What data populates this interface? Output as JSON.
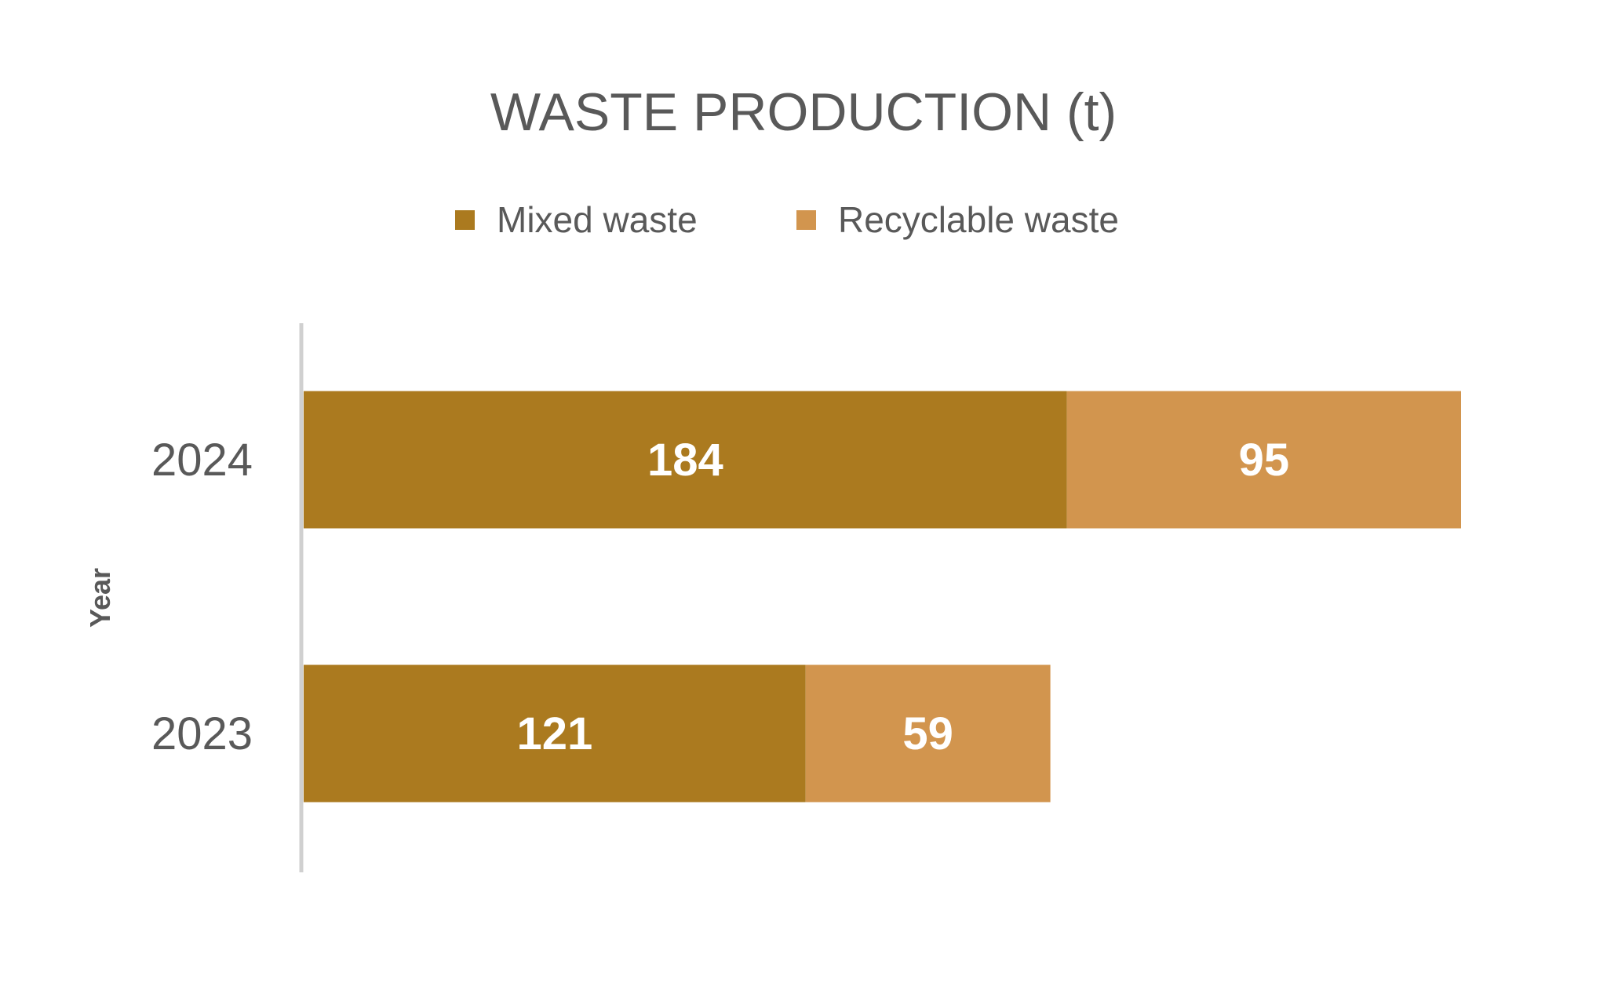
{
  "chart_data": {
    "type": "bar",
    "orientation": "horizontal",
    "stacked": true,
    "title": "WASTE PRODUCTION (t)",
    "ylabel": "Year",
    "xlabel": "",
    "categories": [
      "2024",
      "2023"
    ],
    "series": [
      {
        "name": "Mixed waste",
        "values": [
          184,
          121
        ],
        "color": "#AB7A1F"
      },
      {
        "name": "Recyclable waste",
        "values": [
          95,
          59
        ],
        "color": "#D2954E"
      }
    ],
    "xlim": [
      0,
      279
    ],
    "legend_position": "top",
    "grid": false,
    "data_labels": true,
    "colors": {
      "text": "#595959",
      "axis": "#D0D0D0",
      "label": "#FFFFFF"
    }
  }
}
